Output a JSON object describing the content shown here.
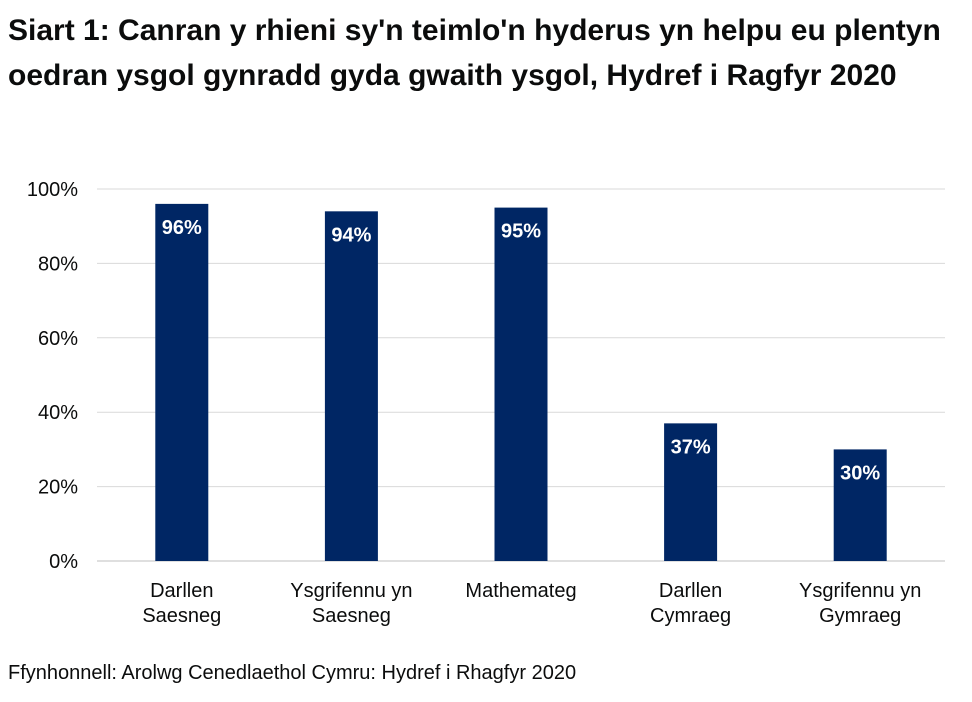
{
  "chart_data": {
    "type": "bar",
    "title": "Siart 1: Canran y rhieni sy'n teimlo'n hyderus yn helpu eu plentyn oedran ysgol gynradd gyda gwaith ysgol, Hydref i Ragfyr 2020",
    "categories": [
      [
        "Darllen",
        "Saesneg"
      ],
      [
        "Ysgrifennu yn",
        "Saesneg"
      ],
      [
        "Mathemateg"
      ],
      [
        "Darllen",
        "Cymraeg"
      ],
      [
        "Ysgrifennu yn",
        "Gymraeg"
      ]
    ],
    "values": [
      96,
      94,
      95,
      37,
      30
    ],
    "data_labels": [
      "96%",
      "94%",
      "95%",
      "37%",
      "30%"
    ],
    "xlabel": "",
    "ylabel": "",
    "ylim": [
      0,
      100
    ],
    "yticks": [
      "0%",
      "20%",
      "40%",
      "60%",
      "80%",
      "100%"
    ],
    "grid": true,
    "bar_color": "#002664",
    "label_color": "#ffffff",
    "grid_color": "#d9d9d9"
  },
  "source": "Ffynhonnell: Arolwg Cenedlaethol Cymru: Hydref i Rhagfyr 2020"
}
